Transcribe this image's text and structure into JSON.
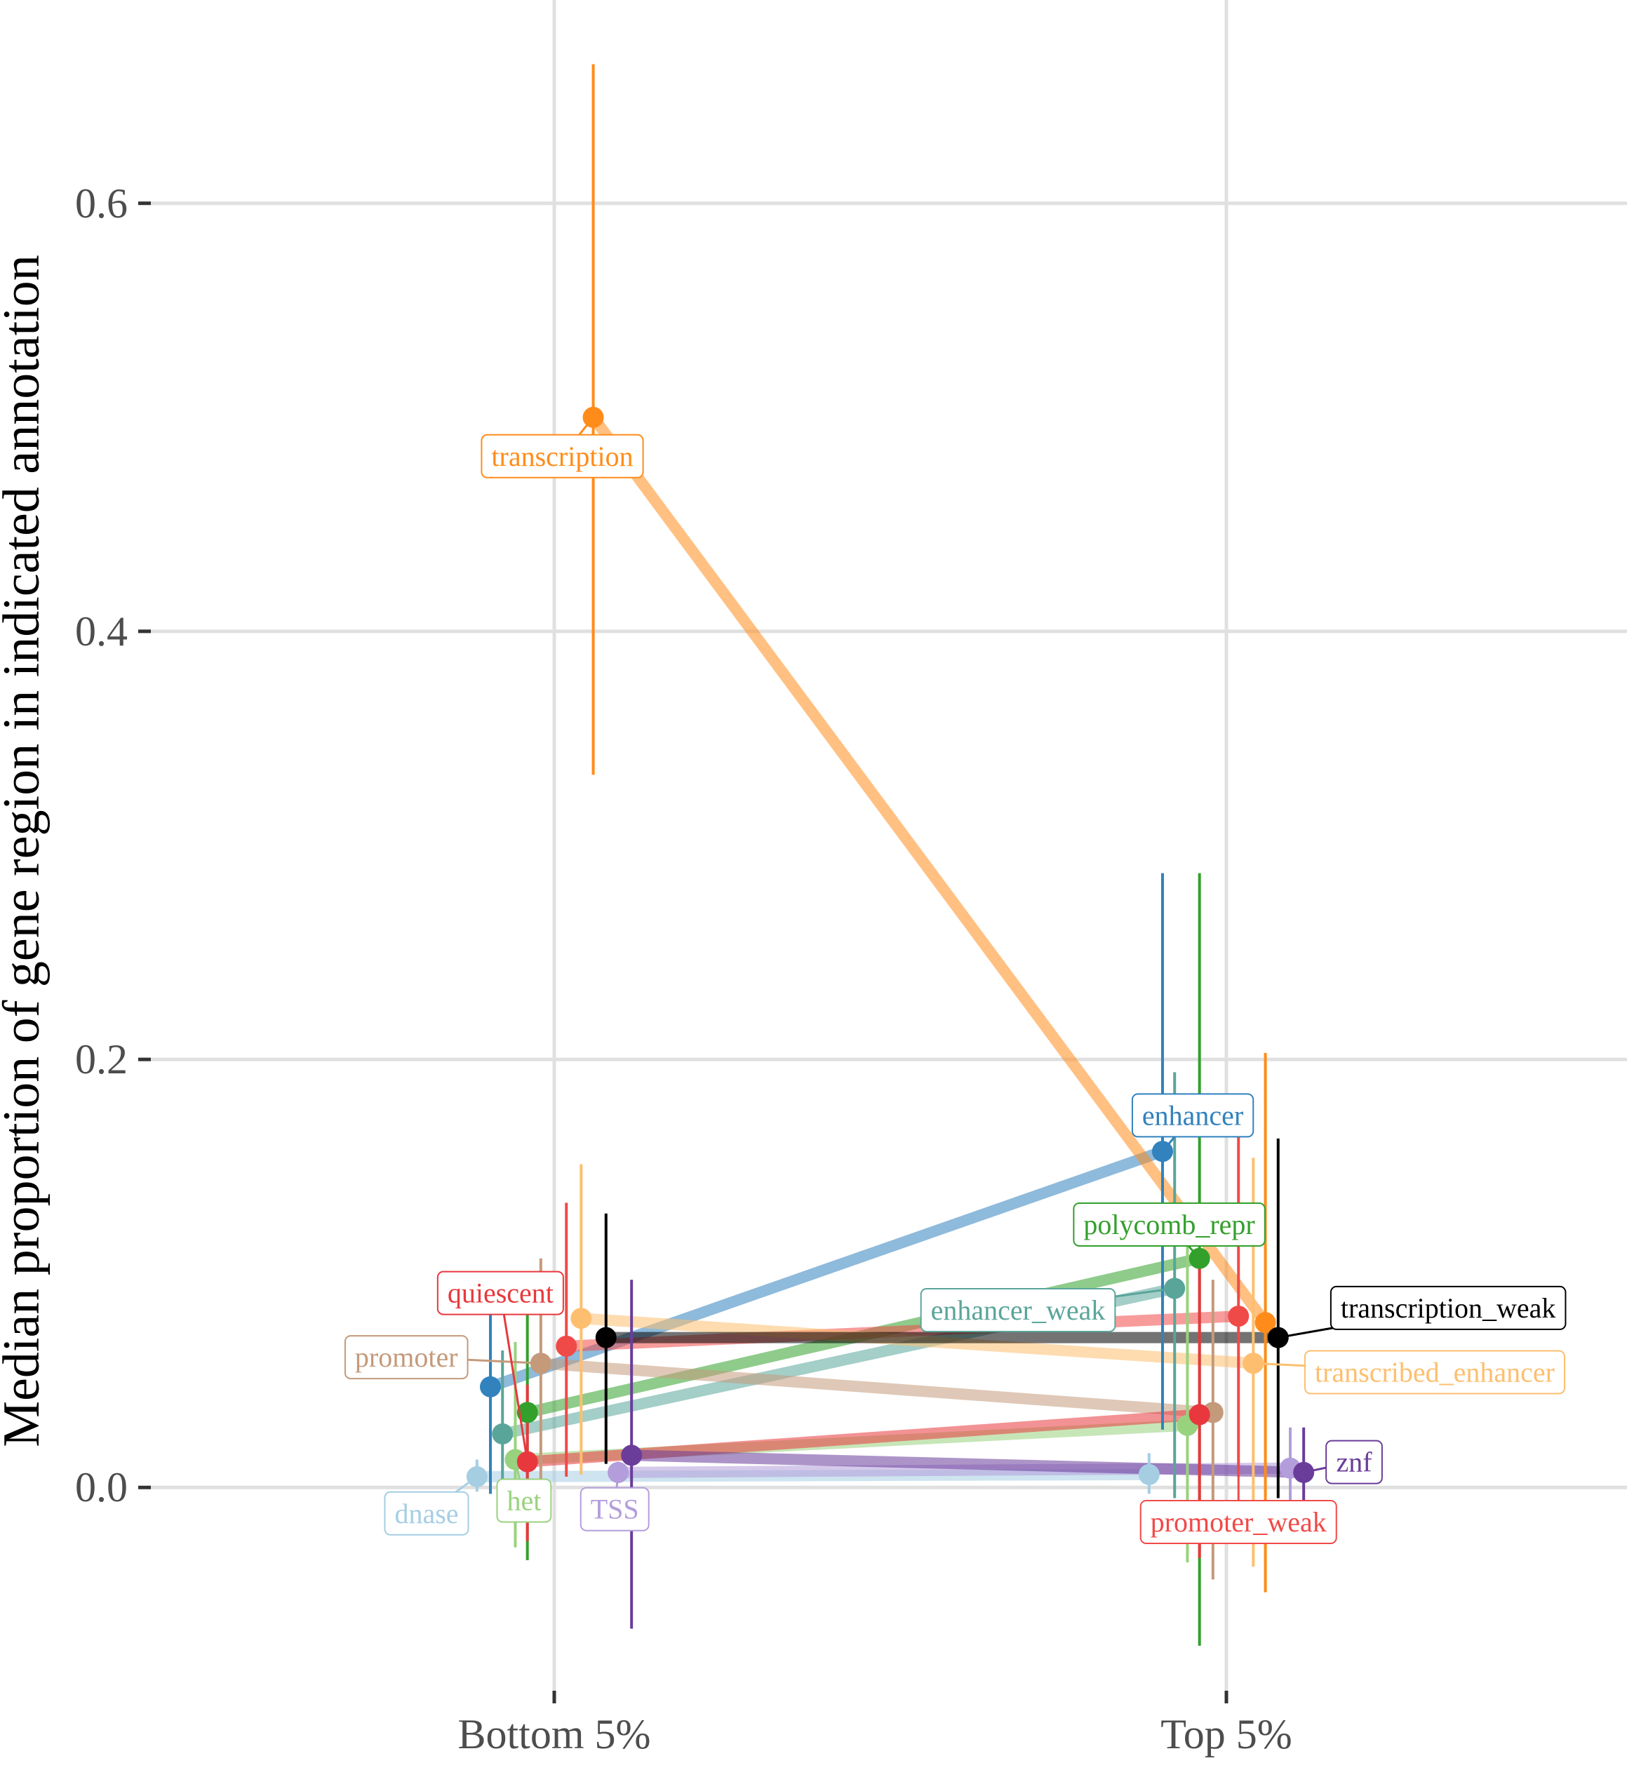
{
  "chart_data": {
    "type": "line",
    "title": "",
    "xlabel": "",
    "ylabel": "Median proportion of gene region in indicated annotation",
    "categories": [
      "Bottom 5%",
      "Top 5%"
    ],
    "ylim": [
      -0.095,
      0.695
    ],
    "yticks": [
      "0.0",
      "0.2",
      "0.4",
      "0.6"
    ],
    "grid": true,
    "legend": "direct labels",
    "series": [
      {
        "name": "dnase",
        "color": "#a6cee3",
        "dodge": -0.115,
        "y": [
          0.005,
          0.006
        ],
        "low": [
          -0.002,
          -0.003
        ],
        "high": [
          0.013,
          0.016
        ],
        "label": {
          "cat": 0,
          "dx": -0.19,
          "y": -0.012
        }
      },
      {
        "name": "enhancer",
        "color": "#3182bd",
        "dodge": -0.095,
        "y": [
          0.047,
          0.157
        ],
        "low": [
          -0.003,
          0.027
        ],
        "high": [
          0.082,
          0.287
        ],
        "label": {
          "cat": 1,
          "dx": -0.05,
          "y": 0.174
        }
      },
      {
        "name": "enhancer_weak",
        "color": "#5aa59a",
        "dodge": -0.077,
        "y": [
          0.025,
          0.093
        ],
        "low": [
          -0.001,
          -0.005
        ],
        "high": [
          0.064,
          0.194
        ],
        "label": {
          "cat": 1,
          "dx": -0.31,
          "y": 0.083
        }
      },
      {
        "name": "het",
        "color": "#99d27e",
        "dodge": -0.058,
        "y": [
          0.013,
          0.029
        ],
        "low": [
          -0.028,
          -0.035
        ],
        "high": [
          0.068,
          0.118
        ],
        "label": {
          "cat": 0,
          "dx": -0.045,
          "y": -0.006
        }
      },
      {
        "name": "polycomb_repr",
        "color": "#33a02c",
        "dodge": -0.04,
        "y": [
          0.035,
          0.107
        ],
        "low": [
          -0.034,
          -0.074
        ],
        "high": [
          0.097,
          0.287
        ],
        "label": {
          "cat": 1,
          "dx": -0.085,
          "y": 0.123
        }
      },
      {
        "name": "promoter",
        "color": "#c49a7b",
        "dodge": -0.02,
        "y": [
          0.058,
          0.035
        ],
        "low": [
          0.001,
          -0.043
        ],
        "high": [
          0.107,
          0.097
        ],
        "label": {
          "cat": 0,
          "dx": -0.22,
          "y": 0.061
        }
      },
      {
        "name": "quiescent",
        "color": "#e8383d",
        "dodge": -0.04,
        "y": [
          0.012,
          0.034
        ],
        "low": [
          -0.025,
          -0.033
        ],
        "high": [
          0.048,
          0.105
        ],
        "label": {
          "cat": 0,
          "dx": -0.08,
          "y": 0.091
        }
      },
      {
        "name": "promoter_weak",
        "color": "#f04a48",
        "dodge": 0.018,
        "y": [
          0.066,
          0.08
        ],
        "low": [
          0.005,
          0.005
        ],
        "high": [
          0.133,
          0.164
        ],
        "label": {
          "cat": 1,
          "dx": 0.018,
          "y": -0.016
        }
      },
      {
        "name": "transcribed_enhancer",
        "color": "#fdbf6f",
        "dodge": 0.04,
        "y": [
          0.079,
          0.058
        ],
        "low": [
          0.006,
          -0.037
        ],
        "high": [
          0.151,
          0.154
        ],
        "label": {
          "cat": 1,
          "dx": 0.31,
          "y": 0.054
        }
      },
      {
        "name": "transcription",
        "color": "#ff8c1a",
        "dodge": 0.058,
        "y": [
          0.5,
          0.077
        ],
        "low": [
          0.333,
          -0.049
        ],
        "high": [
          0.665,
          0.203
        ],
        "label": {
          "cat": 0,
          "dx": 0.012,
          "y": 0.482
        }
      },
      {
        "name": "transcription_weak",
        "color": "#000000",
        "dodge": 0.077,
        "y": [
          0.07,
          0.07
        ],
        "low": [
          0.011,
          -0.005
        ],
        "high": [
          0.128,
          0.163
        ],
        "label": {
          "cat": 1,
          "dx": 0.33,
          "y": 0.084
        }
      },
      {
        "name": "TSS",
        "color": "#b39ddb",
        "dodge": 0.095,
        "y": [
          0.007,
          0.009
        ],
        "low": [
          0.002,
          -0.006
        ],
        "high": [
          0.012,
          0.028
        ],
        "label": {
          "cat": 0,
          "dx": 0.09,
          "y": -0.01
        }
      },
      {
        "name": "znf",
        "color": "#6a3d9a",
        "dodge": 0.115,
        "y": [
          0.015,
          0.007
        ],
        "low": [
          -0.066,
          -0.006
        ],
        "high": [
          0.097,
          0.028
        ],
        "label": {
          "cat": 1,
          "dx": 0.19,
          "y": 0.012
        }
      }
    ]
  }
}
